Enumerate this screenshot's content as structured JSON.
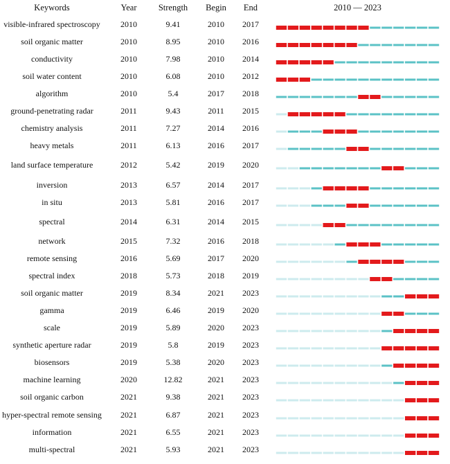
{
  "headers": {
    "keywords": "Keywords",
    "year": "Year",
    "strength": "Strength",
    "begin": "Begin",
    "end": "End",
    "timeline": "2010 — 2023"
  },
  "chart_data": {
    "type": "table",
    "columns": [
      "Keywords",
      "Year",
      "Strength",
      "Begin",
      "End",
      "2010 — 2023"
    ],
    "timeline_range": [
      2010,
      2023
    ],
    "colors": {
      "burst": "#e31a1c",
      "active": "#5bc2c6",
      "inactive": "#cdebee"
    },
    "rows": [
      {
        "keyword": "visible-infrared spectroscopy",
        "year": 2010,
        "strength": "9.41",
        "begin": 2010,
        "end": 2017
      },
      {
        "keyword": "soil organic matter",
        "year": 2010,
        "strength": "8.95",
        "begin": 2010,
        "end": 2016
      },
      {
        "keyword": "conductivity",
        "year": 2010,
        "strength": "7.98",
        "begin": 2010,
        "end": 2014
      },
      {
        "keyword": "soil water content",
        "year": 2010,
        "strength": "6.08",
        "begin": 2010,
        "end": 2012
      },
      {
        "keyword": "algorithm",
        "year": 2010,
        "strength": "5.4",
        "begin": 2017,
        "end": 2018
      },
      {
        "keyword": "ground-penetrating radar",
        "year": 2011,
        "strength": "9.43",
        "begin": 2011,
        "end": 2015
      },
      {
        "keyword": "chemistry analysis",
        "year": 2011,
        "strength": "7.27",
        "begin": 2014,
        "end": 2016
      },
      {
        "keyword": "heavy metals",
        "year": 2011,
        "strength": "6.13",
        "begin": 2016,
        "end": 2017
      },
      {
        "keyword": "land surface temperature",
        "year": 2012,
        "strength": "5.42",
        "begin": 2019,
        "end": 2020
      },
      {
        "keyword": "inversion",
        "year": 2013,
        "strength": "6.57",
        "begin": 2014,
        "end": 2017
      },
      {
        "keyword": "in situ",
        "year": 2013,
        "strength": "5.81",
        "begin": 2016,
        "end": 2017
      },
      {
        "keyword": "spectral",
        "year": 2014,
        "strength": "6.31",
        "begin": 2014,
        "end": 2015
      },
      {
        "keyword": "network",
        "year": 2015,
        "strength": "7.32",
        "begin": 2016,
        "end": 2018
      },
      {
        "keyword": "remote sensing",
        "year": 2016,
        "strength": "5.69",
        "begin": 2017,
        "end": 2020
      },
      {
        "keyword": "spectral index",
        "year": 2018,
        "strength": "5.73",
        "begin": 2018,
        "end": 2019
      },
      {
        "keyword": "soil organic matter",
        "year": 2019,
        "strength": "8.34",
        "begin": 2021,
        "end": 2023
      },
      {
        "keyword": "gamma",
        "year": 2019,
        "strength": "6.46",
        "begin": 2019,
        "end": 2020
      },
      {
        "keyword": "scale",
        "year": 2019,
        "strength": "5.89",
        "begin": 2020,
        "end": 2023
      },
      {
        "keyword": "synthetic aperture radar",
        "year": 2019,
        "strength": "5.8",
        "begin": 2019,
        "end": 2023
      },
      {
        "keyword": "biosensors",
        "year": 2019,
        "strength": "5.38",
        "begin": 2020,
        "end": 2023
      },
      {
        "keyword": "machine learning",
        "year": 2020,
        "strength": "12.82",
        "begin": 2021,
        "end": 2023
      },
      {
        "keyword": "soil organic carbon",
        "year": 2021,
        "strength": "9.38",
        "begin": 2021,
        "end": 2023
      },
      {
        "keyword": "hyper-spectral remote sensing",
        "year": 2021,
        "strength": "6.87",
        "begin": 2021,
        "end": 2023
      },
      {
        "keyword": "information",
        "year": 2021,
        "strength": "6.55",
        "begin": 2021,
        "end": 2023
      },
      {
        "keyword": "multi-spectral",
        "year": 2021,
        "strength": "5.93",
        "begin": 2021,
        "end": 2023
      }
    ]
  }
}
